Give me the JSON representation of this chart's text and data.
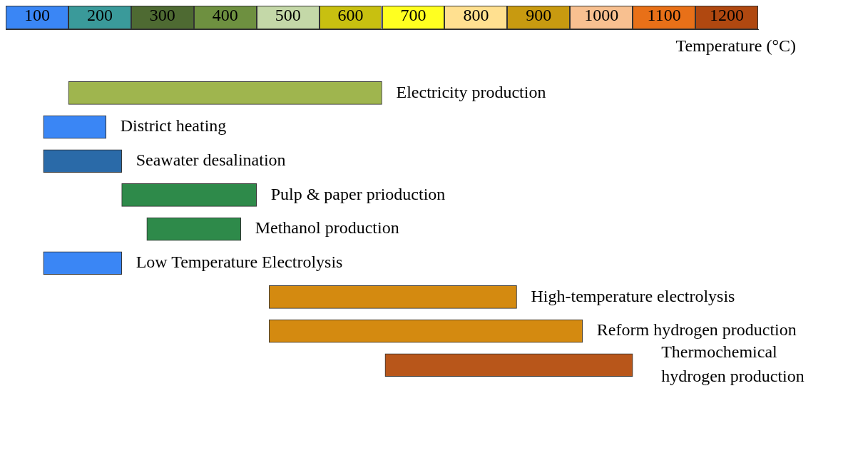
{
  "chart_data": {
    "type": "bar",
    "orientation": "horizontal",
    "xlabel": "Temperature (°C)",
    "categories": [
      "Electricity production",
      "District heating",
      "Seawater desalination",
      "Pulp & paper prioduction",
      "Methanol production",
      "Low Temperature Electrolysis",
      "High-temperature electrolysis",
      "Reform hydrogen production",
      "Thermochemical hydrogen production"
    ],
    "base": [
      150,
      110,
      110,
      235,
      275,
      110,
      470,
      470,
      655
    ],
    "values": [
      500,
      100,
      125,
      215,
      150,
      125,
      395,
      500,
      395
    ],
    "colors": [
      "#9fb54e",
      "#3a86f5",
      "#2a6aa8",
      "#2e8a4a",
      "#2e8a4a",
      "#3a86f5",
      "#d48a10",
      "#d48a10",
      "#b8561a"
    ],
    "xlim": [
      50,
      1250
    ],
    "xticks": [
      100,
      200,
      300,
      400,
      500,
      600,
      700,
      800,
      900,
      1000,
      1100,
      1200
    ],
    "grid": false,
    "legend": false
  }
}
